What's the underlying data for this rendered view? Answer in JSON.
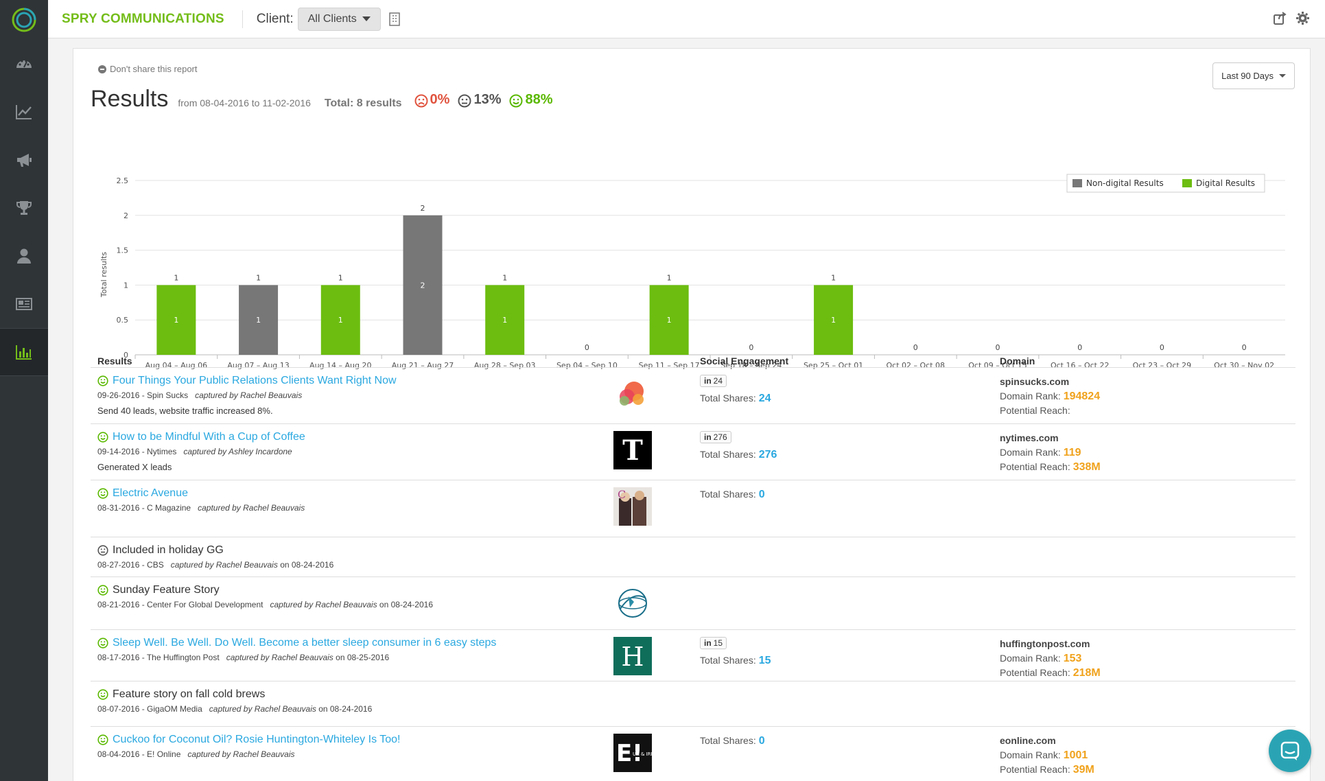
{
  "brand": "SPRY COMMUNICATIONS",
  "client": {
    "label": "Client:",
    "selected": "All Clients"
  },
  "sidebar": {
    "items": [
      {
        "icon": "dashboard-icon",
        "active": false
      },
      {
        "icon": "line-chart-icon",
        "active": false
      },
      {
        "icon": "megaphone-icon",
        "active": false
      },
      {
        "icon": "trophy-icon",
        "active": false
      },
      {
        "icon": "user-icon",
        "active": false
      },
      {
        "icon": "newspaper-icon",
        "active": false
      },
      {
        "icon": "bar-chart-icon",
        "active": true
      }
    ]
  },
  "report": {
    "share_toggle": "Don't share this report",
    "range_select": "Last 90 Days",
    "title": "Results",
    "date_range": "from 08-04-2016 to 11-02-2016",
    "total": "Total: 8 results",
    "sentiment": {
      "negative": "0%",
      "neutral": "13%",
      "positive": "88%"
    }
  },
  "colors": {
    "brand_green": "#74bd1a",
    "digital": "#6cbd10",
    "non_digital": "#777777",
    "link": "#2aa8e0",
    "orange": "#f0a21c"
  },
  "chart_data": {
    "type": "bar",
    "stacked": true,
    "ylabel": "Total results",
    "ylim": [
      0,
      2.5
    ],
    "yticks": [
      "0",
      "0.5",
      "1",
      "1.5",
      "2",
      "2.5"
    ],
    "legend": "top-right",
    "categories": [
      "Aug 04 – Aug 06",
      "Aug 07 – Aug 13",
      "Aug 14 – Aug 20",
      "Aug 21 – Aug 27",
      "Aug 28 – Sep 03",
      "Sep 04 – Sep 10",
      "Sep 11 – Sep 17",
      "Sep 18 – Sep 24",
      "Sep 25 – Oct 01",
      "Oct 02 – Oct 08",
      "Oct 09 – Oct 15",
      "Oct 16 – Oct 22",
      "Oct 23 – Oct 29",
      "Oct 30 – Nov 02"
    ],
    "series": [
      {
        "name": "Non-digital Results",
        "values": [
          0,
          1,
          0,
          2,
          0,
          0,
          0,
          0,
          0,
          0,
          0,
          0,
          0,
          0
        ]
      },
      {
        "name": "Digital Results",
        "values": [
          1,
          0,
          1,
          0,
          1,
          0,
          1,
          0,
          1,
          0,
          0,
          0,
          0,
          0
        ]
      }
    ],
    "totals": [
      1,
      1,
      1,
      2,
      1,
      0,
      1,
      0,
      1,
      0,
      0,
      0,
      0,
      0
    ]
  },
  "table": {
    "headers": {
      "results": "Results",
      "social": "Social Engagement",
      "domain": "Domain"
    },
    "rows": [
      {
        "title": "Four Things Your Public Relations Clients Want Right Now",
        "link": true,
        "sentiment": "positive",
        "meta": "09-26-2016  - Spin Sucks",
        "captured": "captured by Rachel Beauvais",
        "captured_on": "",
        "note": "Send 40 leads, website traffic increased 8%.",
        "thumb": "spinsucks-logo",
        "linkedin": "24",
        "shares_label": "Total Shares:",
        "shares": "24",
        "domain": "spinsucks.com",
        "rank_label": "Domain Rank:",
        "rank": "194824",
        "reach_label": "Potential Reach:",
        "reach": ""
      },
      {
        "title": "How to be Mindful With a Cup of Coffee",
        "link": true,
        "sentiment": "positive",
        "meta": "09-14-2016  - Nytimes",
        "captured": "captured by Ashley Incardone",
        "captured_on": "",
        "note": "Generated X leads",
        "thumb": "nytimes-logo",
        "linkedin": "276",
        "shares_label": "Total Shares:",
        "shares": "276",
        "domain": "nytimes.com",
        "rank_label": "Domain Rank:",
        "rank": "119",
        "reach_label": "Potential Reach:",
        "reach": "338M"
      },
      {
        "title": "Electric Avenue",
        "link": true,
        "sentiment": "positive",
        "meta": "08-31-2016  - C Magazine",
        "captured": "captured by Rachel Beauvais",
        "captured_on": "",
        "note": "",
        "thumb": "cmagazine-photo",
        "linkedin": "",
        "shares_label": "Total Shares:",
        "shares": "0",
        "domain": "",
        "rank_label": "",
        "rank": "",
        "reach_label": "",
        "reach": ""
      },
      {
        "title": "Included in holiday GG",
        "link": false,
        "sentiment": "neutral",
        "meta": "08-27-2016  - CBS",
        "captured": "captured by Rachel Beauvais",
        "captured_on": "on 08-24-2016",
        "note": "",
        "thumb": "",
        "linkedin": "",
        "shares_label": "",
        "shares": "",
        "domain": "",
        "rank_label": "",
        "rank": "",
        "reach_label": "",
        "reach": ""
      },
      {
        "title": "Sunday Feature Story",
        "link": false,
        "sentiment": "positive",
        "meta": "08-21-2016  - Center For Global Development",
        "captured": "captured by Rachel Beauvais",
        "captured_on": "on 08-24-2016",
        "note": "",
        "thumb": "globe-logo",
        "linkedin": "",
        "shares_label": "",
        "shares": "",
        "domain": "",
        "rank_label": "",
        "rank": "",
        "reach_label": "",
        "reach": ""
      },
      {
        "title": "Sleep Well. Be Well. Do Well. Become a better sleep consumer in 6 easy steps",
        "link": true,
        "sentiment": "positive",
        "meta": "08-17-2016  - The Huffington Post",
        "captured": "captured by Rachel Beauvais",
        "captured_on": "on 08-25-2016",
        "note": "",
        "thumb": "huffpost-logo",
        "linkedin": "15",
        "shares_label": "Total Shares:",
        "shares": "15",
        "domain": "huffingtonpost.com",
        "rank_label": "Domain Rank:",
        "rank": "153",
        "reach_label": "Potential Reach:",
        "reach": "218M"
      },
      {
        "title": "Feature story on fall cold brews",
        "link": false,
        "sentiment": "positive",
        "meta": "08-07-2016  - GigaOM Media",
        "captured": "captured by Rachel Beauvais",
        "captured_on": "on 08-24-2016",
        "note": "",
        "thumb": "",
        "linkedin": "",
        "shares_label": "",
        "shares": "",
        "domain": "",
        "rank_label": "",
        "rank": "",
        "reach_label": "",
        "reach": ""
      },
      {
        "title": "Cuckoo for Coconut Oil? Rosie Huntington-Whiteley Is Too!",
        "link": true,
        "sentiment": "positive",
        "meta": "08-04-2016  - E! Online",
        "captured": "captured by Rachel Beauvais",
        "captured_on": "",
        "note": "",
        "thumb": "eonline-logo",
        "linkedin": "",
        "shares_label": "Total Shares:",
        "shares": "0",
        "domain": "eonline.com",
        "rank_label": "Domain Rank:",
        "rank": "1001",
        "reach_label": "Potential Reach:",
        "reach": "39M"
      }
    ]
  },
  "thumb_text": {
    "nytimes": "T",
    "huffpost": "H",
    "eonline": "E!",
    "eonline_sub": "UK & IRELAND"
  }
}
